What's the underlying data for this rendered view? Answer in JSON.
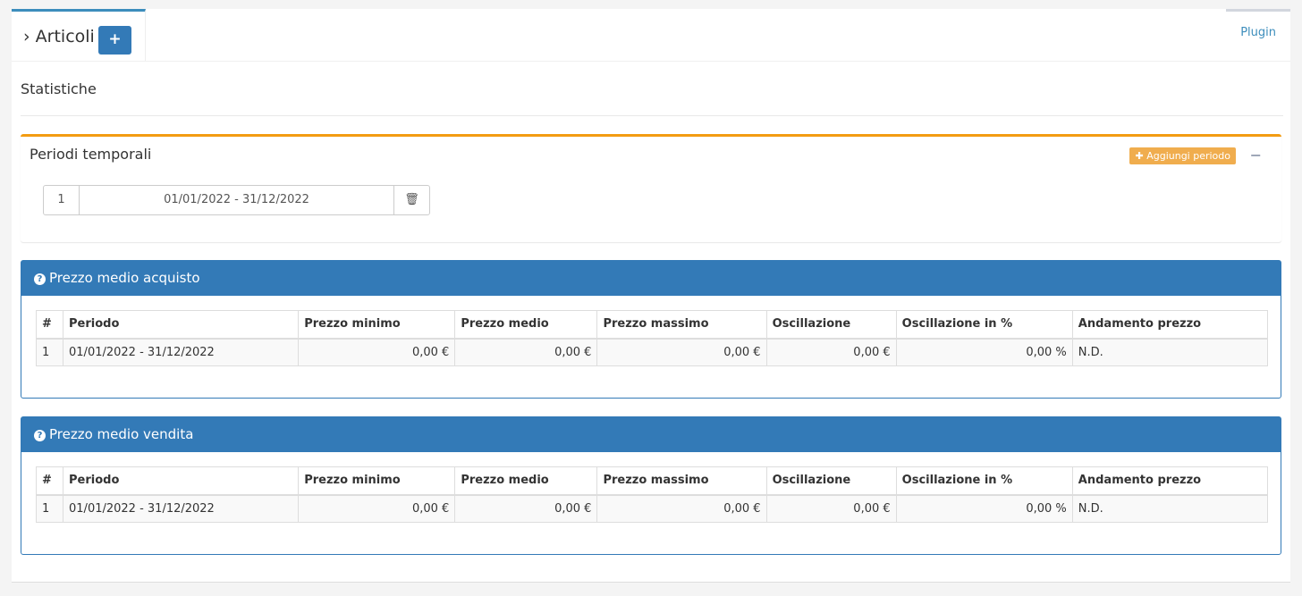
{
  "tab": {
    "title": "Articoli",
    "add": "+",
    "plugin": "Plugin"
  },
  "section": "Statistiche",
  "periods": {
    "title": "Periodi temporali",
    "add": "Aggiungi periodo",
    "collapse": "−",
    "items": [
      {
        "n": "1",
        "range": "01/01/2022 - 31/12/2022"
      }
    ]
  },
  "columns": [
    "#",
    "Periodo",
    "Prezzo minimo",
    "Prezzo medio",
    "Prezzo massimo",
    "Oscillazione",
    "Oscillazione in %",
    "Andamento prezzo"
  ],
  "panels": [
    {
      "title": "Prezzo medio acquisto",
      "rows": [
        [
          "1",
          "01/01/2022 - 31/12/2022",
          "0,00 €",
          "0,00 €",
          "0,00 €",
          "0,00 €",
          "0,00 %",
          "N.D."
        ]
      ]
    },
    {
      "title": "Prezzo medio vendita",
      "rows": [
        [
          "1",
          "01/01/2022 - 31/12/2022",
          "0,00 €",
          "0,00 €",
          "0,00 €",
          "0,00 €",
          "0,00 %",
          "N.D."
        ]
      ]
    }
  ],
  "colors": {
    "primary": "#337ab7",
    "warning": "#f39c12"
  }
}
